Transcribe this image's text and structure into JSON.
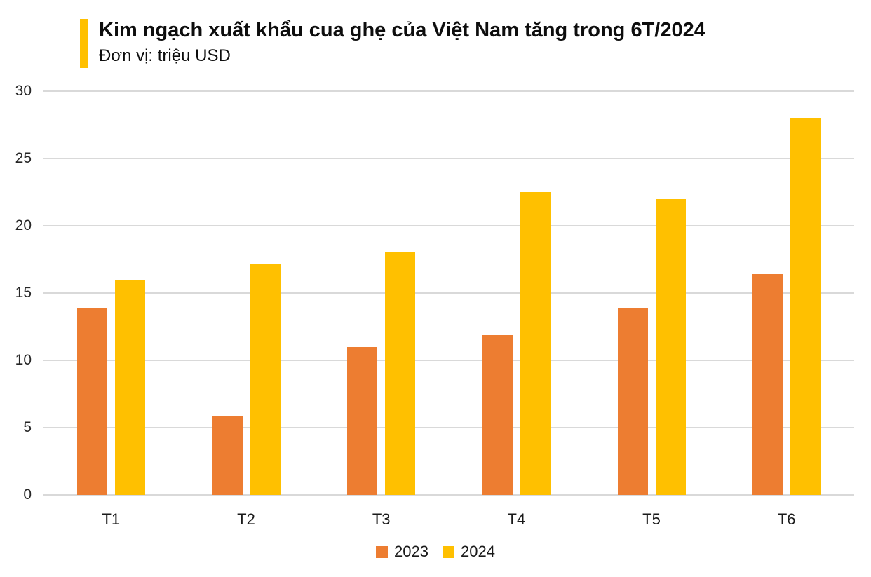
{
  "header": {
    "title": "Kim ngạch xuất khẩu cua ghẹ của Việt Nam tăng trong 6T/2024",
    "subtitle": "Đơn vị: triệu USD"
  },
  "colors": {
    "title_accent": "#FFC000",
    "series_2023": "#ED7D31",
    "series_2024": "#FFC000",
    "gridline": "#D9D9D9",
    "axis_text": "#262626"
  },
  "chart_data": {
    "type": "bar",
    "title": "Kim ngạch xuất khẩu cua ghẹ của Việt Nam tăng trong 6T/2024",
    "subtitle_unit": "Đơn vị: triệu USD",
    "categories": [
      "T1",
      "T2",
      "T3",
      "T4",
      "T5",
      "T6"
    ],
    "series": [
      {
        "name": "2023",
        "color": "#ED7D31",
        "values": [
          13.9,
          5.9,
          11.0,
          11.9,
          13.9,
          16.4
        ]
      },
      {
        "name": "2024",
        "color": "#FFC000",
        "values": [
          16.0,
          17.2,
          18.0,
          22.5,
          22.0,
          28.0
        ]
      }
    ],
    "y_ticks": [
      0,
      5,
      10,
      15,
      20,
      25,
      30
    ],
    "ylim": [
      0,
      30
    ],
    "xlabel": "",
    "ylabel": "",
    "grid": true,
    "legend_position": "bottom",
    "legend_entries": [
      "2023",
      "2024"
    ]
  }
}
